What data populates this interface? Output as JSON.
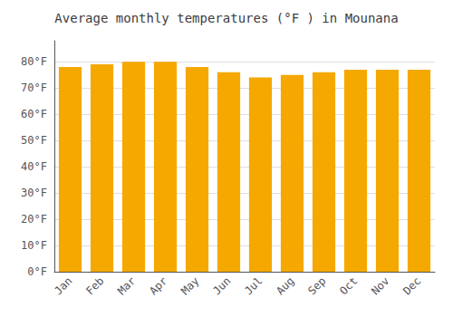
{
  "chart_data": {
    "type": "bar",
    "title": "Average monthly temperatures (°F ) in Mounana",
    "categories": [
      "Jan",
      "Feb",
      "Mar",
      "Apr",
      "May",
      "Jun",
      "Jul",
      "Aug",
      "Sep",
      "Oct",
      "Nov",
      "Dec"
    ],
    "values": [
      78,
      79,
      80,
      80,
      78,
      76,
      74,
      75,
      76,
      77,
      77,
      77
    ],
    "color": "#F5A800",
    "ylim": [
      0,
      88
    ],
    "yticks": [
      {
        "value": 0,
        "label": "0°F"
      },
      {
        "value": 10,
        "label": "10°F"
      },
      {
        "value": 20,
        "label": "20°F"
      },
      {
        "value": 30,
        "label": "30°F"
      },
      {
        "value": 40,
        "label": "40°F"
      },
      {
        "value": 50,
        "label": "50°F"
      },
      {
        "value": 60,
        "label": "60°F"
      },
      {
        "value": 70,
        "label": "70°F"
      },
      {
        "value": 80,
        "label": "80°F"
      }
    ],
    "grid": true
  }
}
